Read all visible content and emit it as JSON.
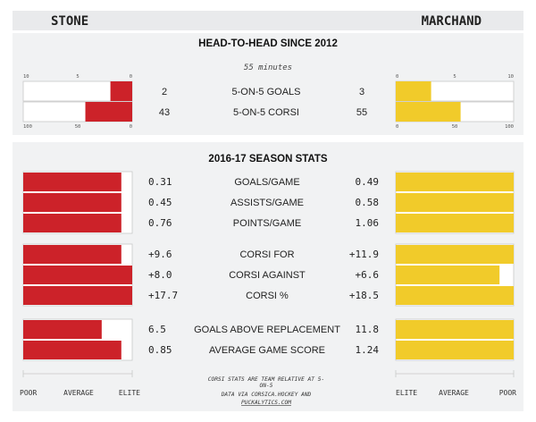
{
  "header": {
    "left_player": "STONE",
    "right_player": "MARCHAND"
  },
  "colors": {
    "left": "#cc2229",
    "right": "#f1cb2a",
    "band": "#f1f2f3",
    "header_band": "#e9eaec",
    "box_border": "#c8c8c8"
  },
  "chart_data": [
    {
      "type": "bar",
      "title": "HEAD-TO-HEAD SINCE 2012",
      "subtitle": "55 minutes",
      "layout": "mirrored",
      "series": [
        {
          "name": "STONE"
        },
        {
          "name": "MARCHAND"
        }
      ],
      "groups": [
        {
          "categories": [
            "5-ON-5 GOALS"
          ],
          "left_values": [
            2
          ],
          "right_values": [
            3
          ],
          "left_labels": [
            "2"
          ],
          "right_labels": [
            "3"
          ],
          "xlim": [
            0,
            10
          ],
          "ticks": [
            "10",
            "5",
            "0"
          ],
          "right_ticks": [
            "0",
            "5",
            "10"
          ]
        },
        {
          "categories": [
            "5-ON-5 CORSI"
          ],
          "left_values": [
            43
          ],
          "right_values": [
            55
          ],
          "left_labels": [
            "43"
          ],
          "right_labels": [
            "55"
          ],
          "xlim": [
            0,
            100
          ],
          "ticks": [
            "100",
            "50",
            "0"
          ],
          "right_ticks": [
            "0",
            "50",
            "100"
          ]
        }
      ]
    },
    {
      "type": "bar",
      "title": "2016-17 SEASON STATS",
      "layout": "mirrored",
      "value_type": "scaled score from 0 to 1, with 1 being elite",
      "series": [
        {
          "name": "STONE"
        },
        {
          "name": "MARCHAND"
        }
      ],
      "groups": [
        {
          "categories": [
            "GOALS/GAME",
            "ASSISTS/GAME",
            "POINTS/GAME"
          ],
          "left_labels": [
            "0.31",
            "0.45",
            "0.76"
          ],
          "right_labels": [
            "0.49",
            "0.58",
            "1.06"
          ],
          "left_values": [
            0.9,
            0.9,
            0.9
          ],
          "right_values": [
            1.0,
            1.0,
            1.0
          ]
        },
        {
          "categories": [
            "CORSI FOR",
            "CORSI AGAINST",
            "CORSI %"
          ],
          "left_labels": [
            "+9.6",
            "+8.0",
            "+17.7"
          ],
          "right_labels": [
            "+11.9",
            "+6.6",
            "+18.5"
          ],
          "left_values": [
            0.9,
            1.0,
            1.0
          ],
          "right_values": [
            1.0,
            0.88,
            1.0
          ]
        },
        {
          "categories": [
            "GOALS ABOVE REPLACEMENT",
            "AVERAGE GAME SCORE"
          ],
          "left_labels": [
            "6.5",
            "0.85"
          ],
          "right_labels": [
            "11.8",
            "1.24"
          ],
          "left_values": [
            0.72,
            0.9
          ],
          "right_values": [
            1.0,
            1.0
          ]
        }
      ],
      "scale_labels_left": [
        "POOR",
        "AVERAGE",
        "ELITE"
      ],
      "scale_labels_right": [
        "ELITE",
        "AVERAGE",
        "POOR"
      ]
    }
  ],
  "footer": {
    "note_lines": [
      "CORSI STATS ARE TEAM RELATIVE AT 5-",
      "ON-5",
      "DATA VIA CORSICA.HOCKEY AND",
      "PUCKALYTICS.COM"
    ]
  }
}
